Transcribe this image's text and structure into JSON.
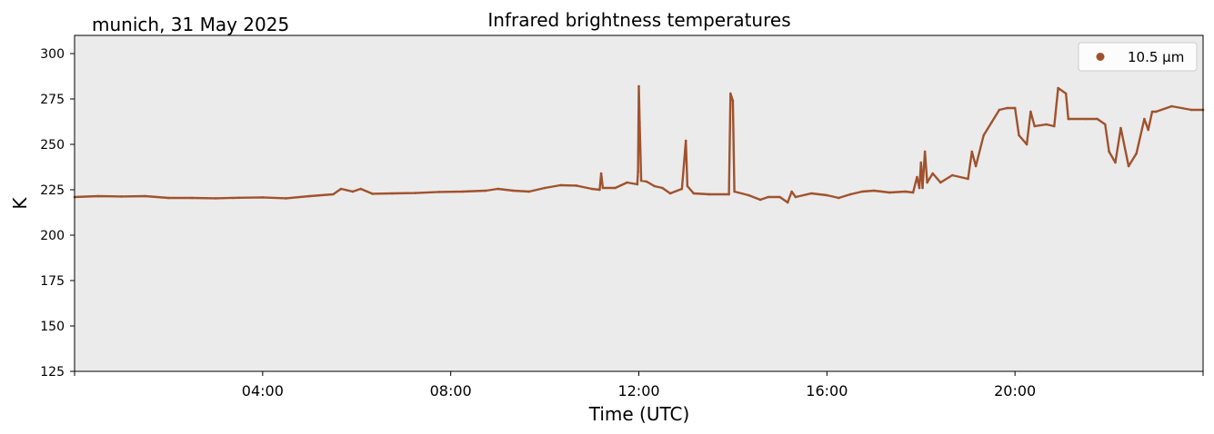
{
  "figure": {
    "location_date": "munich, 31 May 2025",
    "title": "Infrared brightness temperatures"
  },
  "chart_data": {
    "type": "scatter",
    "title": "Infrared brightness temperatures",
    "xlabel": "Time (UTC)",
    "ylabel": "K",
    "xlim": [
      "00:00",
      "24:00"
    ],
    "ylim": [
      125,
      310
    ],
    "x_ticks": [
      "04:00",
      "08:00",
      "12:00",
      "16:00",
      "20:00"
    ],
    "y_ticks": [
      125,
      150,
      175,
      200,
      225,
      250,
      275,
      300
    ],
    "grid": false,
    "background": "#ebebeb",
    "legend": {
      "position": "top-right",
      "entries": [
        {
          "label": "10.5 µm",
          "color": "#a0522d",
          "marker": "circle"
        }
      ]
    },
    "series": [
      {
        "name": "10.5 µm",
        "color": "#a0522d",
        "points": [
          [
            "00:00",
            221
          ],
          [
            "00:30",
            221.5
          ],
          [
            "01:00",
            221.3
          ],
          [
            "01:30",
            221.5
          ],
          [
            "02:00",
            220.5
          ],
          [
            "02:30",
            220.5
          ],
          [
            "03:00",
            220.3
          ],
          [
            "03:30",
            220.6
          ],
          [
            "04:00",
            220.8
          ],
          [
            "04:30",
            220.3
          ],
          [
            "05:00",
            221.5
          ],
          [
            "05:30",
            222.5
          ],
          [
            "05:40",
            225.5
          ],
          [
            "05:55",
            224
          ],
          [
            "06:05",
            225.5
          ],
          [
            "06:20",
            222.8
          ],
          [
            "06:45",
            223
          ],
          [
            "07:15",
            223.2
          ],
          [
            "07:45",
            223.8
          ],
          [
            "08:15",
            224
          ],
          [
            "08:45",
            224.5
          ],
          [
            "09:00",
            225.5
          ],
          [
            "09:20",
            224.5
          ],
          [
            "09:40",
            224
          ],
          [
            "10:00",
            226
          ],
          [
            "10:20",
            227.5
          ],
          [
            "10:40",
            227.3
          ],
          [
            "11:00",
            225.5
          ],
          [
            "11:10",
            225
          ],
          [
            "11:12",
            234
          ],
          [
            "11:14",
            226
          ],
          [
            "11:30",
            226
          ],
          [
            "11:45",
            229
          ],
          [
            "11:58",
            228
          ],
          [
            "11:59",
            235
          ],
          [
            "12:00",
            282
          ],
          [
            "12:01",
            262
          ],
          [
            "12:03",
            230
          ],
          [
            "12:10",
            229.5
          ],
          [
            "12:20",
            227
          ],
          [
            "12:30",
            226
          ],
          [
            "12:40",
            223
          ],
          [
            "12:55",
            225.5
          ],
          [
            "13:00",
            252
          ],
          [
            "13:02",
            227
          ],
          [
            "13:10",
            223
          ],
          [
            "13:30",
            222.5
          ],
          [
            "13:55",
            222.5
          ],
          [
            "13:57",
            278
          ],
          [
            "14:00",
            274
          ],
          [
            "14:02",
            224
          ],
          [
            "14:20",
            222
          ],
          [
            "14:35",
            219.5
          ],
          [
            "14:45",
            221
          ],
          [
            "15:00",
            221
          ],
          [
            "15:10",
            218
          ],
          [
            "15:15",
            224
          ],
          [
            "15:20",
            221
          ],
          [
            "15:40",
            223
          ],
          [
            "16:00",
            222
          ],
          [
            "16:15",
            220.5
          ],
          [
            "16:30",
            222.5
          ],
          [
            "16:45",
            224
          ],
          [
            "17:00",
            224.5
          ],
          [
            "17:20",
            223.5
          ],
          [
            "17:40",
            224
          ],
          [
            "17:50",
            223.5
          ],
          [
            "17:55",
            232
          ],
          [
            "17:58",
            226
          ],
          [
            "18:00",
            240
          ],
          [
            "18:02",
            226
          ],
          [
            "18:05",
            246
          ],
          [
            "18:08",
            229
          ],
          [
            "18:15",
            234
          ],
          [
            "18:25",
            229
          ],
          [
            "18:40",
            233
          ],
          [
            "19:00",
            231
          ],
          [
            "19:05",
            246
          ],
          [
            "19:10",
            238
          ],
          [
            "19:20",
            255
          ],
          [
            "19:30",
            262
          ],
          [
            "19:40",
            269
          ],
          [
            "19:50",
            270
          ],
          [
            "20:00",
            270
          ],
          [
            "20:05",
            255
          ],
          [
            "20:15",
            250
          ],
          [
            "20:20",
            268
          ],
          [
            "20:25",
            260
          ],
          [
            "20:40",
            261
          ],
          [
            "20:50",
            260
          ],
          [
            "20:55",
            281
          ],
          [
            "21:05",
            278
          ],
          [
            "21:08",
            264
          ],
          [
            "21:30",
            264
          ],
          [
            "21:45",
            264
          ],
          [
            "21:55",
            261
          ],
          [
            "22:00",
            246
          ],
          [
            "22:08",
            240
          ],
          [
            "22:15",
            259
          ],
          [
            "22:25",
            238
          ],
          [
            "22:35",
            245
          ],
          [
            "22:45",
            264
          ],
          [
            "22:50",
            258
          ],
          [
            "22:55",
            268
          ],
          [
            "23:00",
            268
          ],
          [
            "23:20",
            271
          ],
          [
            "23:45",
            269
          ],
          [
            "24:00",
            269
          ]
        ]
      }
    ]
  }
}
